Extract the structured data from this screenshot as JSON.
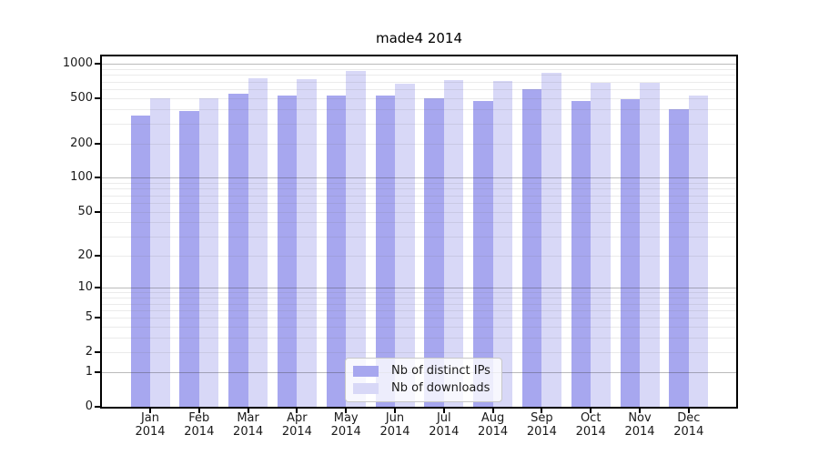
{
  "title": "made4 2014",
  "colors": {
    "distinct_ips": "#a7a7ef",
    "downloads": "#d8d8f7",
    "frame": "#000000",
    "grid_major": "rgba(60,60,60,0.35)",
    "grid_minor": "rgba(110,110,110,0.14)",
    "legend_border": "#c8c8c8",
    "legend_background": "rgba(255,255,255,0.8)"
  },
  "chart_data": {
    "type": "bar",
    "title": "made4 2014",
    "xlabel": "",
    "ylabel": "",
    "y_scale": "log10(1+v)",
    "ylim": [
      0,
      1160
    ],
    "grid": true,
    "legend_position": "bottom-center",
    "categories": [
      "Jan 2014",
      "Feb 2014",
      "Mar 2014",
      "Apr 2014",
      "May 2014",
      "Jun 2014",
      "Jul 2014",
      "Aug 2014",
      "Sep 2014",
      "Oct 2014",
      "Nov 2014",
      "Dec 2014"
    ],
    "series": [
      {
        "name": "Nb of distinct IPs",
        "color_key": "distinct_ips",
        "values": [
          355,
          385,
          550,
          525,
          530,
          530,
          500,
          475,
          600,
          470,
          490,
          400
        ]
      },
      {
        "name": "Nb of downloads",
        "color_key": "downloads",
        "values": [
          495,
          500,
          745,
          740,
          865,
          670,
          720,
          705,
          835,
          680,
          685,
          530
        ]
      }
    ],
    "y_axis": {
      "ticks": [
        {
          "label": "1000",
          "value": 1000,
          "major": true
        },
        {
          "label": "500",
          "value": 500,
          "major": false
        },
        {
          "label": "200",
          "value": 200,
          "major": false
        },
        {
          "label": "100",
          "value": 100,
          "major": true
        },
        {
          "label": "50",
          "value": 50,
          "major": false
        },
        {
          "label": "20",
          "value": 20,
          "major": false
        },
        {
          "label": "10",
          "value": 10,
          "major": true
        },
        {
          "label": "5",
          "value": 5,
          "major": false
        },
        {
          "label": "2",
          "value": 2,
          "major": false
        },
        {
          "label": "1",
          "value": 1,
          "major": true
        },
        {
          "label": "0",
          "value": 0,
          "major": false
        }
      ]
    }
  }
}
